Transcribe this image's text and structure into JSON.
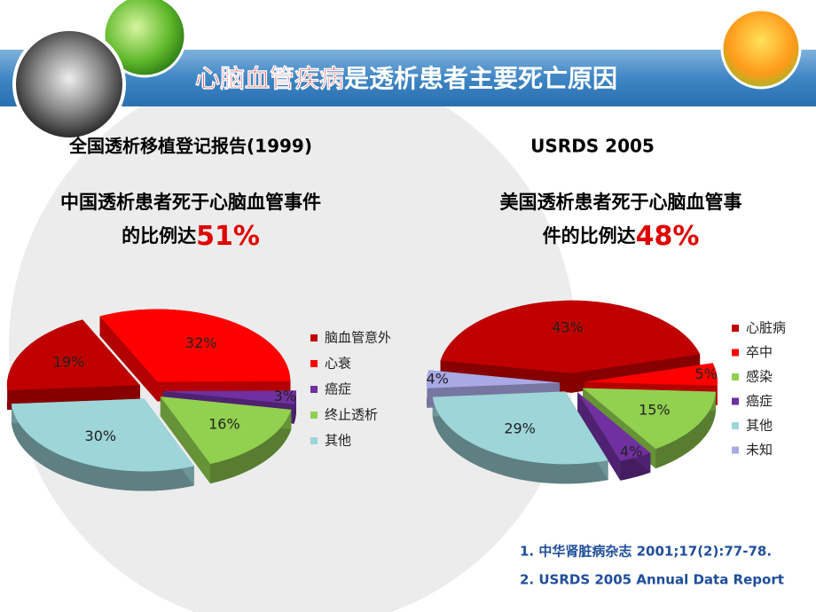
{
  "title_parts": [
    "心脑血管疾病",
    "是透析患者主要死亡原因"
  ],
  "chart_data": [
    {
      "type": "pie",
      "source": "全国透析移植登记报告(1999)",
      "subtitle_lines": [
        "中国透析患者死于心脑血管事件",
        "的比例达"
      ],
      "highlight": "51%",
      "categories": [
        "脑血管意外",
        "心衰",
        "癌症",
        "终止透析",
        "其他"
      ],
      "values": [
        19,
        32,
        3,
        16,
        30
      ],
      "value_labels": [
        "19%",
        "32%",
        "3%",
        "16%",
        "30%"
      ],
      "colors": [
        "#c00000",
        "#ff0000",
        "#7030a0",
        "#92d050",
        "#9dd5d8"
      ]
    },
    {
      "type": "pie",
      "source": "USRDS 2005",
      "subtitle_lines": [
        "美国透析患者死于心脑血管事",
        "件的比例达"
      ],
      "highlight": "48%",
      "categories": [
        "心脏病",
        "卒中",
        "感染",
        "癌症",
        "其他",
        "未知"
      ],
      "values": [
        43,
        5,
        15,
        4,
        29,
        4
      ],
      "value_labels": [
        "43%",
        "5%",
        "15%",
        "4%",
        "29%",
        "4%"
      ],
      "colors": [
        "#c00000",
        "#ff0000",
        "#92d050",
        "#7030a0",
        "#9dd5d8",
        "#a9a9e6"
      ]
    }
  ],
  "references": [
    "1. 中华肾脏病杂志 2001;17(2):77-78.",
    "2. USRDS 2005 Annual Data Report"
  ]
}
